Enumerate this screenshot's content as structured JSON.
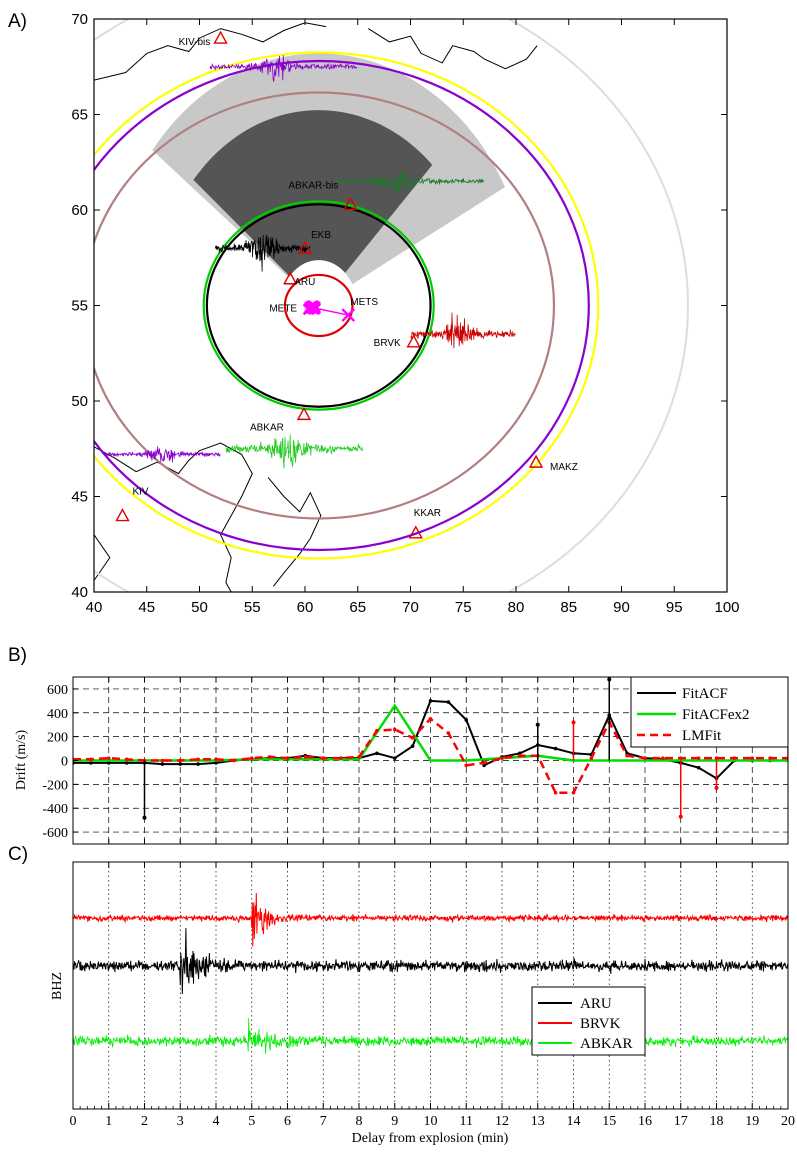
{
  "chart_data": [
    {
      "panel_label": "A)",
      "type": "map",
      "xlim": [
        40,
        100
      ],
      "ylim": [
        40,
        70
      ],
      "x_ticks": [
        40,
        45,
        50,
        55,
        60,
        65,
        70,
        75,
        80,
        85,
        90,
        95,
        100
      ],
      "y_ticks": [
        40,
        45,
        50,
        55,
        60,
        65,
        70
      ],
      "stations": [
        {
          "name": "ARU",
          "lon": 58.6,
          "lat": 56.4
        },
        {
          "name": "EKB",
          "lon": 60.0,
          "lat": 58.0
        },
        {
          "name": "ABKAR-bis",
          "lon": 64.3,
          "lat": 60.3
        },
        {
          "name": "BRVK",
          "lon": 70.3,
          "lat": 53.1
        },
        {
          "name": "ABKAR",
          "lon": 59.9,
          "lat": 49.3
        },
        {
          "name": "MAKZ",
          "lon": 81.9,
          "lat": 46.8
        },
        {
          "name": "KKAR",
          "lon": 70.5,
          "lat": 43.1
        },
        {
          "name": "KIV",
          "lon": 42.7,
          "lat": 44.0
        },
        {
          "name": "KIV-bis",
          "lon": 52.0,
          "lat": 69.0
        }
      ],
      "events": [
        {
          "name": "METE",
          "lon": 60.6,
          "lat": 54.9
        },
        {
          "name": "METS",
          "lon": 64.1,
          "lat": 54.5
        }
      ],
      "circles": [
        {
          "color": "#e00000",
          "center": [
            61.3,
            55.0
          ],
          "radius_deg": 3.2
        },
        {
          "color": "#00cc00",
          "center": [
            61.3,
            55.0
          ],
          "radius_deg": 10.9
        },
        {
          "color": "#000000",
          "center": [
            61.3,
            55.0
          ],
          "radius_deg": 10.6
        },
        {
          "color": "#b08080",
          "center": [
            61.3,
            55.0
          ],
          "radius_deg": 22.3
        },
        {
          "color": "#8a00cc",
          "center": [
            61.3,
            55.0
          ],
          "radius_deg": 25.6
        },
        {
          "color": "#ffff00",
          "center": [
            61.3,
            55.0
          ],
          "radius_deg": 26.5
        },
        {
          "color": "#dddddd",
          "center": [
            61.3,
            55.0
          ],
          "radius_deg": 35.0
        }
      ]
    },
    {
      "panel_label": "B)",
      "type": "line",
      "ylabel": "Drift (m/s)",
      "xlim": [
        0,
        20
      ],
      "ylim": [
        -700,
        700
      ],
      "y_ticks": [
        -600,
        -400,
        -200,
        0,
        200,
        400,
        600
      ],
      "grid": true,
      "legend_position": "top-right",
      "series": [
        {
          "name": "FitACF",
          "color": "#000000",
          "x": [
            0,
            0.5,
            1,
            1.5,
            2,
            2.5,
            3,
            3.5,
            4,
            4.5,
            5,
            5.5,
            6,
            6.5,
            7,
            7.5,
            8,
            8.5,
            9,
            9.5,
            10,
            10.5,
            11,
            11.5,
            12,
            12.5,
            13,
            13.5,
            14,
            14.5,
            15,
            15.5,
            16,
            16.5,
            17,
            17.5,
            18,
            18.5,
            19,
            19.5,
            20
          ],
          "y": [
            -20,
            -20,
            -20,
            -20,
            -20,
            -30,
            -30,
            -30,
            -20,
            0,
            10,
            20,
            20,
            40,
            20,
            20,
            20,
            60,
            20,
            120,
            500,
            490,
            340,
            -40,
            30,
            60,
            130,
            100,
            60,
            50,
            380,
            60,
            20,
            10,
            -20,
            -60,
            -150,
            0,
            0,
            0,
            0
          ]
        },
        {
          "name": "FitACFex2",
          "color": "#00dd00",
          "x": [
            0,
            1,
            2,
            3,
            4,
            5,
            6,
            7,
            8,
            9,
            10,
            11,
            12,
            13,
            14,
            15,
            16,
            17,
            18,
            19,
            20
          ],
          "y": [
            0,
            0,
            0,
            0,
            0,
            10,
            10,
            10,
            10,
            460,
            0,
            0,
            20,
            40,
            0,
            0,
            0,
            0,
            0,
            0,
            0
          ]
        },
        {
          "name": "LMFit",
          "color": "#ff0000",
          "x": [
            0,
            0.5,
            1,
            1.5,
            2,
            2.5,
            3,
            3.5,
            4,
            4.5,
            5,
            5.5,
            6,
            6.5,
            7,
            7.5,
            8,
            8.5,
            9,
            9.5,
            10,
            10.5,
            11,
            11.5,
            12,
            12.5,
            13,
            13.5,
            14,
            14.5,
            15,
            15.5,
            16,
            16.5,
            17,
            17.5,
            18,
            18.5,
            19,
            19.5,
            20
          ],
          "y": [
            10,
            10,
            20,
            10,
            0,
            0,
            0,
            10,
            10,
            0,
            20,
            30,
            20,
            30,
            20,
            20,
            30,
            250,
            260,
            190,
            350,
            230,
            -40,
            -20,
            20,
            40,
            40,
            -270,
            -270,
            20,
            320,
            40,
            20,
            20,
            20,
            20,
            20,
            20,
            20,
            20,
            20
          ]
        }
      ]
    },
    {
      "panel_label": "C)",
      "type": "line",
      "ylabel": "BHZ",
      "xlabel": "Delay from explosion (min)",
      "xlim": [
        0,
        20
      ],
      "x_ticks": [
        0,
        1,
        2,
        3,
        4,
        5,
        6,
        7,
        8,
        9,
        10,
        11,
        12,
        13,
        14,
        15,
        16,
        17,
        18,
        19,
        20
      ],
      "legend_position": "right",
      "series": [
        {
          "name": "ARU",
          "color": "#000000",
          "baseline_offset": 0,
          "event_arrival_min": 3.0,
          "event_peak_amplitude": 1.0
        },
        {
          "name": "BRVK",
          "color": "#ff0000",
          "baseline_offset": 1,
          "event_arrival_min": 5.0,
          "event_peak_amplitude": 0.7
        },
        {
          "name": "ABKAR",
          "color": "#00ee00",
          "baseline_offset": -1,
          "event_arrival_min": 4.9,
          "event_peak_amplitude": 0.5
        }
      ]
    }
  ]
}
